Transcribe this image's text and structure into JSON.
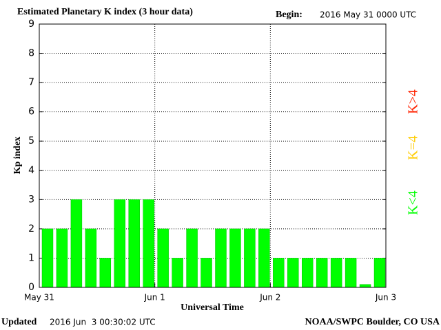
{
  "chart_data": {
    "type": "bar",
    "title": "Estimated Planetary K index (3 hour data)",
    "begin_label": "Begin:",
    "begin": "2016 May 31 0000 UTC",
    "y_label": "Kp index",
    "x_label": "Universal Time",
    "updated_label": "Updated",
    "updated": "2016 Jun  3 00:30:02 UTC",
    "source": "NOAA/SWPC Boulder, CO USA",
    "x": [
      0,
      3,
      6,
      9,
      12,
      15,
      18,
      21,
      24,
      27,
      30,
      33,
      36,
      39,
      42,
      45,
      48,
      51,
      54,
      57,
      60,
      63,
      66,
      69
    ],
    "bar_width": 3,
    "values": [
      2,
      2,
      3,
      2,
      1,
      3,
      3,
      3,
      2,
      1,
      2,
      1,
      2,
      2,
      2,
      2,
      1,
      1,
      1,
      1,
      1,
      1,
      0.1,
      1
    ],
    "color": "#00ff00",
    "xlim": [
      0,
      72
    ],
    "xticks": [
      {
        "value": 0,
        "label": "May 31"
      },
      {
        "value": 24,
        "label": "Jun 1"
      },
      {
        "value": 48,
        "label": "Jun 2"
      },
      {
        "value": 72,
        "label": "Jun 3"
      }
    ],
    "ylim": [
      0,
      9
    ],
    "yticks": [
      0,
      1,
      2,
      3,
      4,
      5,
      6,
      7,
      8,
      9
    ],
    "grid": true,
    "legend": [
      {
        "label": "K<4",
        "color": "#00ff00"
      },
      {
        "label": "K=4",
        "color": "#ffcc00"
      },
      {
        "label": "K>4",
        "color": "#ff2200"
      }
    ]
  }
}
